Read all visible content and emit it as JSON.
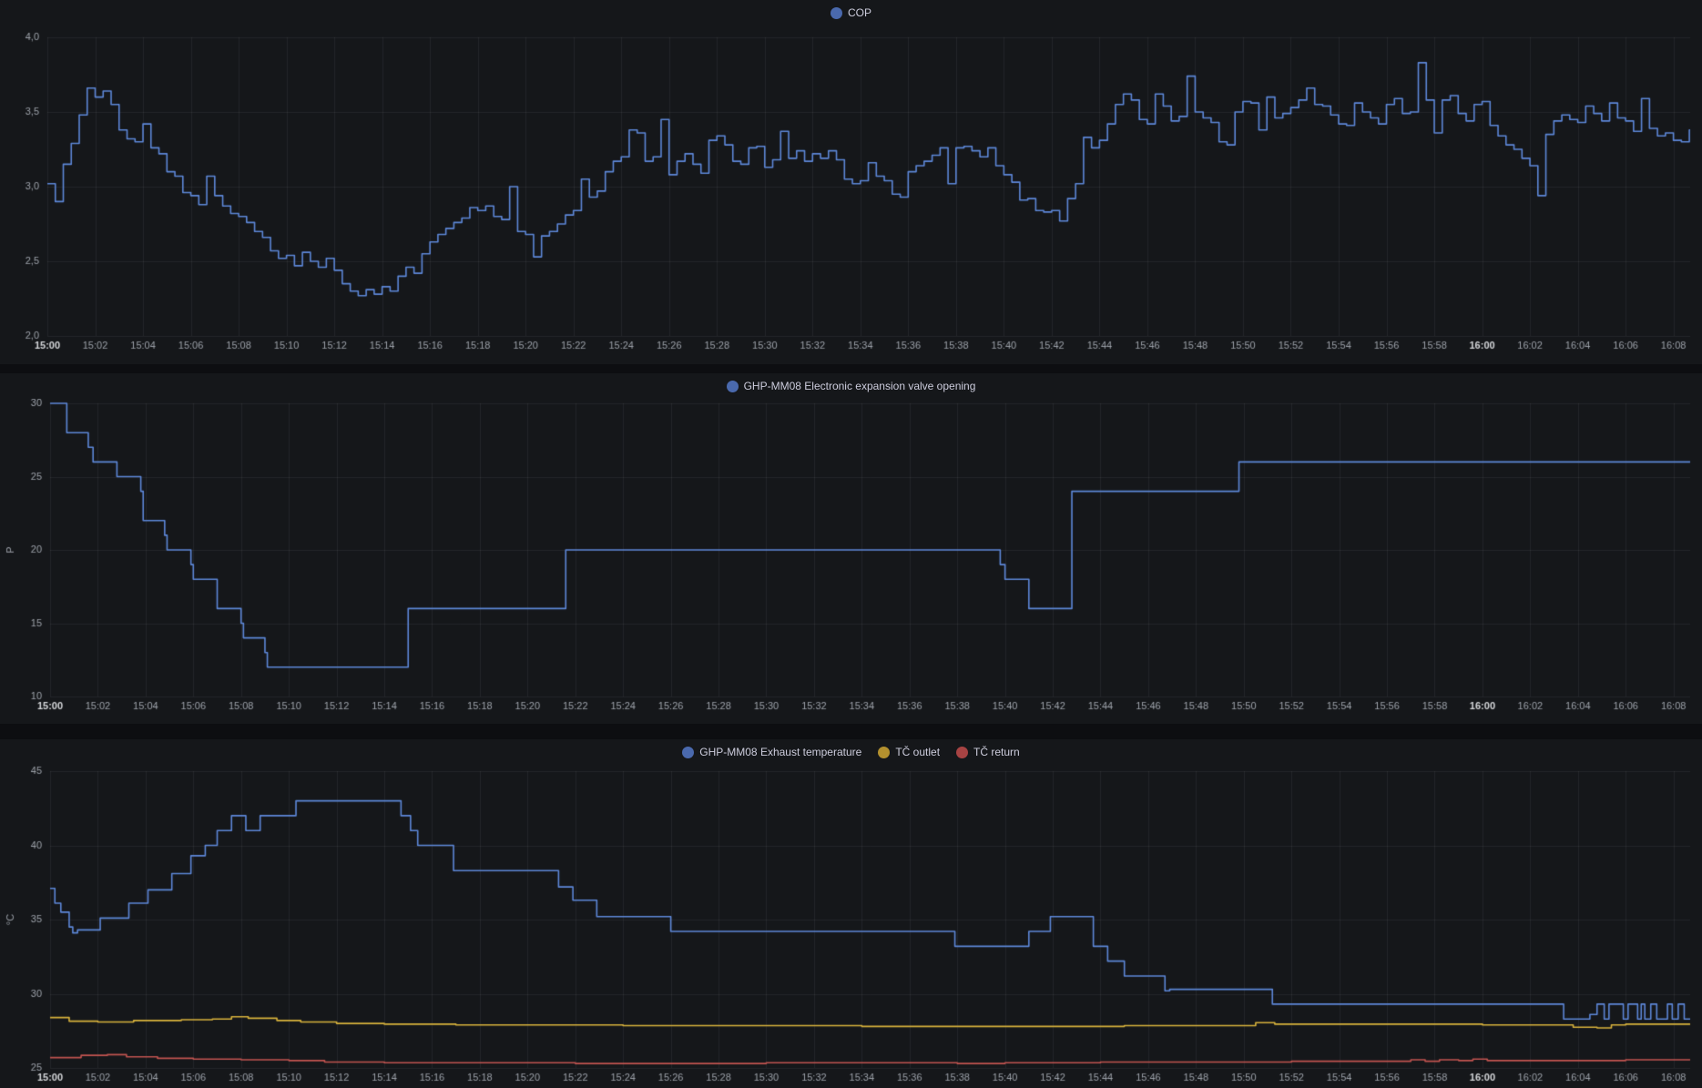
{
  "colors": {
    "page_bg": "#0d0e11",
    "panel_bg": "#15171a",
    "grid": "rgba(204,210,228,0.08)",
    "tick_text": "#9da2aa",
    "tick_text_bold": "#d5d7da",
    "series_blue": "#5d87d8",
    "series_blue_dot": "#4a69ad",
    "series_yellow": "#d8b23c",
    "series_yellow_dot": "#b3902e",
    "series_red": "#c25450",
    "series_red_dot": "#a74343"
  },
  "time_axis": {
    "tick_interval_min": 2,
    "end_min": 68.7,
    "labels": [
      "15:00",
      "15:02",
      "15:04",
      "15:06",
      "15:08",
      "15:10",
      "15:12",
      "15:14",
      "15:16",
      "15:18",
      "15:20",
      "15:22",
      "15:24",
      "15:26",
      "15:28",
      "15:30",
      "15:32",
      "15:34",
      "15:36",
      "15:38",
      "15:40",
      "15:42",
      "15:44",
      "15:46",
      "15:48",
      "15:50",
      "15:52",
      "15:54",
      "15:56",
      "15:58",
      "16:00",
      "16:02",
      "16:04",
      "16:06",
      "16:08"
    ],
    "bold_labels": [
      "15:00",
      "16:00"
    ]
  },
  "chart_data": [
    {
      "type": "line",
      "legend": [
        {
          "label": "COP",
          "color": "#5d87d8",
          "dot": "#4a69ad"
        }
      ],
      "ylabel": "",
      "ylim": [
        2.0,
        4.0
      ],
      "ytick_values": [
        2.0,
        2.5,
        3.0,
        3.5,
        4.0
      ],
      "ytick_labels": [
        "2,0",
        "2,5",
        "3,0",
        "3,5",
        "4,0"
      ],
      "series": [
        {
          "name": "COP",
          "color": "#5d87d8",
          "mode": "uniform",
          "t0": 0,
          "dt_min": 0.33333,
          "values": [
            3.02,
            2.9,
            3.15,
            3.29,
            3.48,
            3.66,
            3.6,
            3.64,
            3.55,
            3.38,
            3.32,
            3.3,
            3.42,
            3.26,
            3.22,
            3.1,
            3.07,
            2.96,
            2.94,
            2.88,
            3.07,
            2.94,
            2.87,
            2.82,
            2.8,
            2.76,
            2.7,
            2.66,
            2.57,
            2.52,
            2.54,
            2.47,
            2.56,
            2.5,
            2.46,
            2.52,
            2.44,
            2.35,
            2.3,
            2.27,
            2.31,
            2.28,
            2.33,
            2.3,
            2.4,
            2.46,
            2.42,
            2.55,
            2.63,
            2.68,
            2.72,
            2.76,
            2.79,
            2.86,
            2.84,
            2.87,
            2.8,
            2.78,
            3.0,
            2.7,
            2.68,
            2.53,
            2.67,
            2.7,
            2.75,
            2.81,
            2.84,
            3.05,
            2.93,
            2.97,
            3.1,
            3.17,
            3.2,
            3.38,
            3.36,
            3.17,
            3.2,
            3.45,
            3.08,
            3.17,
            3.22,
            3.15,
            3.09,
            3.31,
            3.34,
            3.28,
            3.17,
            3.15,
            3.26,
            3.27,
            3.13,
            3.18,
            3.37,
            3.19,
            3.24,
            3.17,
            3.22,
            3.19,
            3.24,
            3.18,
            3.05,
            3.02,
            3.04,
            3.16,
            3.07,
            3.04,
            2.95,
            2.93,
            3.1,
            3.14,
            3.17,
            3.21,
            3.26,
            3.02,
            3.26,
            3.27,
            3.24,
            3.2,
            3.26,
            3.14,
            3.08,
            3.03,
            2.91,
            2.92,
            2.84,
            2.83,
            2.84,
            2.77,
            2.92,
            3.02,
            3.33,
            3.26,
            3.31,
            3.42,
            3.55,
            3.62,
            3.58,
            3.45,
            3.42,
            3.62,
            3.54,
            3.44,
            3.47,
            3.74,
            3.5,
            3.46,
            3.43,
            3.3,
            3.28,
            3.5,
            3.57,
            3.56,
            3.38,
            3.6,
            3.46,
            3.49,
            3.53,
            3.58,
            3.66,
            3.55,
            3.54,
            3.48,
            3.42,
            3.41,
            3.56,
            3.5,
            3.46,
            3.42,
            3.55,
            3.59,
            3.49,
            3.5,
            3.83,
            3.58,
            3.36,
            3.58,
            3.61,
            3.49,
            3.44,
            3.55,
            3.57,
            3.41,
            3.34,
            3.28,
            3.25,
            3.19,
            3.14,
            2.94,
            3.35,
            3.44,
            3.48,
            3.45,
            3.43,
            3.54,
            3.49,
            3.44,
            3.56,
            3.46,
            3.44,
            3.37,
            3.59,
            3.39,
            3.34,
            3.36,
            3.31,
            3.3,
            3.38
          ]
        }
      ]
    },
    {
      "type": "line",
      "legend": [
        {
          "label": "GHP-MM08 Electronic expansion valve opening",
          "color": "#5d87d8",
          "dot": "#4a69ad"
        }
      ],
      "ylabel": "P",
      "ylim": [
        10,
        30
      ],
      "ytick_values": [
        10,
        15,
        20,
        25,
        30
      ],
      "ytick_labels": [
        "10",
        "15",
        "20",
        "25",
        "30"
      ],
      "series": [
        {
          "name": "GHP-MM08 Electronic expansion valve opening",
          "color": "#5d87d8",
          "mode": "steps",
          "points": [
            [
              0,
              30
            ],
            [
              0.7,
              28
            ],
            [
              1.6,
              27
            ],
            [
              1.8,
              26
            ],
            [
              2.8,
              25
            ],
            [
              3.8,
              24
            ],
            [
              3.9,
              22
            ],
            [
              4.8,
              21
            ],
            [
              4.9,
              20
            ],
            [
              5.9,
              19
            ],
            [
              6.0,
              18
            ],
            [
              7.0,
              16
            ],
            [
              8.0,
              15
            ],
            [
              8.1,
              14
            ],
            [
              9.0,
              13
            ],
            [
              9.1,
              12
            ],
            [
              15.0,
              16
            ],
            [
              21.6,
              20
            ],
            [
              39.8,
              19
            ],
            [
              40.0,
              18
            ],
            [
              41.0,
              16
            ],
            [
              42.8,
              24
            ],
            [
              49.8,
              26
            ]
          ]
        }
      ]
    },
    {
      "type": "line",
      "legend": [
        {
          "label": "GHP-MM08 Exhaust temperature",
          "color": "#5d87d8",
          "dot": "#4a69ad"
        },
        {
          "label": "TČ outlet",
          "color": "#d8b23c",
          "dot": "#b3902e"
        },
        {
          "label": "TČ return",
          "color": "#c25450",
          "dot": "#a74343"
        }
      ],
      "ylabel": "°C",
      "ylim": [
        25,
        45
      ],
      "ytick_values": [
        25,
        30,
        35,
        40,
        45
      ],
      "ytick_labels": [
        "25",
        "30",
        "35",
        "40",
        "45"
      ],
      "series": [
        {
          "name": "GHP-MM08 Exhaust temperature",
          "color": "#5d87d8",
          "mode": "steps",
          "points": [
            [
              0,
              37.1
            ],
            [
              0.2,
              36.1
            ],
            [
              0.45,
              35.5
            ],
            [
              0.8,
              34.5
            ],
            [
              0.95,
              34.1
            ],
            [
              1.15,
              34.3
            ],
            [
              2.1,
              35.1
            ],
            [
              3.3,
              36.1
            ],
            [
              4.1,
              37.0
            ],
            [
              5.1,
              38.1
            ],
            [
              5.9,
              39.3
            ],
            [
              6.5,
              40.0
            ],
            [
              7.0,
              41.0
            ],
            [
              7.6,
              42.0
            ],
            [
              8.2,
              41.0
            ],
            [
              8.8,
              42.0
            ],
            [
              10.3,
              43.0
            ],
            [
              14.7,
              42.0
            ],
            [
              15.1,
              41.0
            ],
            [
              15.4,
              40.0
            ],
            [
              16.9,
              38.3
            ],
            [
              21.3,
              37.2
            ],
            [
              21.9,
              36.3
            ],
            [
              22.9,
              35.2
            ],
            [
              26.0,
              34.2
            ],
            [
              37.9,
              33.2
            ],
            [
              41.0,
              34.2
            ],
            [
              41.9,
              35.2
            ],
            [
              43.7,
              33.2
            ],
            [
              44.3,
              32.2
            ],
            [
              45.0,
              31.2
            ],
            [
              46.7,
              30.2
            ],
            [
              46.9,
              30.3
            ],
            [
              51.2,
              29.3
            ],
            [
              63.4,
              28.3
            ],
            [
              64.5,
              28.6
            ],
            [
              64.8,
              29.3
            ],
            [
              65.1,
              28.3
            ],
            [
              65.3,
              29.3
            ],
            [
              65.9,
              28.3
            ],
            [
              66.1,
              29.3
            ],
            [
              66.5,
              28.3
            ],
            [
              66.65,
              29.3
            ],
            [
              66.8,
              28.3
            ],
            [
              67.05,
              29.3
            ],
            [
              67.3,
              28.3
            ],
            [
              67.75,
              29.3
            ],
            [
              67.95,
              28.3
            ],
            [
              68.2,
              29.3
            ],
            [
              68.45,
              28.3
            ]
          ]
        },
        {
          "name": "TČ outlet",
          "color": "#d8b23c",
          "mode": "steps",
          "points": [
            [
              0,
              28.4
            ],
            [
              0.8,
              28.15
            ],
            [
              2.0,
              28.1
            ],
            [
              3.5,
              28.2
            ],
            [
              5.5,
              28.25
            ],
            [
              6.8,
              28.3
            ],
            [
              7.6,
              28.45
            ],
            [
              8.3,
              28.35
            ],
            [
              9.5,
              28.2
            ],
            [
              10.5,
              28.1
            ],
            [
              12,
              28.0
            ],
            [
              14,
              27.95
            ],
            [
              17,
              27.9
            ],
            [
              24,
              27.85
            ],
            [
              34,
              27.8
            ],
            [
              45,
              27.85
            ],
            [
              50.5,
              28.05
            ],
            [
              51.3,
              27.95
            ],
            [
              60,
              27.9
            ],
            [
              63.8,
              27.75
            ],
            [
              64.8,
              27.7
            ],
            [
              65.4,
              27.9
            ],
            [
              66,
              27.95
            ]
          ]
        },
        {
          "name": "TČ return",
          "color": "#c25450",
          "mode": "steps",
          "points": [
            [
              0,
              25.7
            ],
            [
              1.3,
              25.85
            ],
            [
              2.4,
              25.9
            ],
            [
              3.2,
              25.75
            ],
            [
              4.5,
              25.65
            ],
            [
              6,
              25.6
            ],
            [
              8,
              25.55
            ],
            [
              10,
              25.5
            ],
            [
              11.5,
              25.4
            ],
            [
              14,
              25.35
            ],
            [
              22,
              25.3
            ],
            [
              30,
              25.35
            ],
            [
              38,
              25.3
            ],
            [
              40,
              25.35
            ],
            [
              44,
              25.4
            ],
            [
              52,
              25.45
            ],
            [
              57,
              25.55
            ],
            [
              57.6,
              25.45
            ],
            [
              58.2,
              25.55
            ],
            [
              59,
              25.5
            ],
            [
              59.6,
              25.6
            ],
            [
              60.2,
              25.5
            ],
            [
              64,
              25.5
            ],
            [
              66,
              25.55
            ]
          ]
        }
      ]
    }
  ]
}
